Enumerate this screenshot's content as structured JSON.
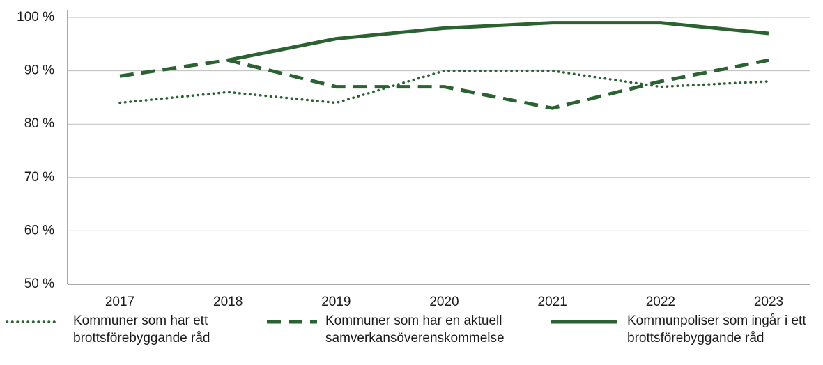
{
  "chart_data": {
    "type": "line",
    "categories": [
      "2017",
      "2018",
      "2019",
      "2020",
      "2021",
      "2022",
      "2023"
    ],
    "series": [
      {
        "name": "Kommuner som har ett brottsförebyggande råd",
        "color": "#2b6232",
        "dash": "dotted",
        "values": [
          84,
          86,
          84,
          90,
          90,
          87,
          88
        ]
      },
      {
        "name": "Kommuner som har en aktuell samverkansöverenskommelse",
        "color": "#2b6232",
        "dash": "dashed",
        "values": [
          89,
          92,
          87,
          87,
          83,
          88,
          92
        ]
      },
      {
        "name": "Kommunpoliser som ingår i ett brottsförebyggande råd",
        "color": "#2b6232",
        "dash": "solid",
        "values": [
          null,
          92,
          96,
          98,
          99,
          99,
          97
        ]
      }
    ],
    "ylim": [
      50,
      100
    ],
    "yticks": [
      {
        "value": 50,
        "label": "50 %"
      },
      {
        "value": 60,
        "label": "60 %"
      },
      {
        "value": 70,
        "label": "70 %"
      },
      {
        "value": 80,
        "label": "80 %"
      },
      {
        "value": 90,
        "label": "90 %"
      },
      {
        "value": 100,
        "label": "100 %"
      }
    ],
    "grid": true
  }
}
